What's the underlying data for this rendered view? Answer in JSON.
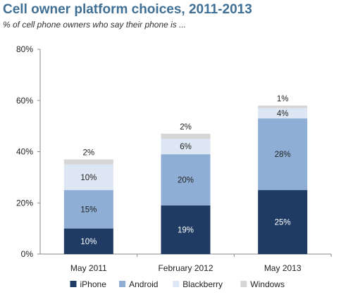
{
  "chart_data": {
    "type": "bar",
    "stacked": true,
    "title": "Cell owner platform choices, 2011-2013",
    "subtitle": "% of cell phone owners who say their phone is ...",
    "categories": [
      "May 2011",
      "February 2012",
      "May 2013"
    ],
    "series": [
      {
        "name": "iPhone",
        "values": [
          10,
          19,
          25
        ],
        "labels": [
          "10%",
          "19%",
          "25%"
        ],
        "color": "#1f3b63"
      },
      {
        "name": "Android",
        "values": [
          15,
          20,
          28
        ],
        "labels": [
          "15%",
          "20%",
          "28%"
        ],
        "color": "#8eaed6"
      },
      {
        "name": "Blackberry",
        "values": [
          10,
          6,
          4
        ],
        "labels": [
          "10%",
          "6%",
          "4%"
        ],
        "color": "#dde7f3"
      },
      {
        "name": "Windows",
        "values": [
          2,
          2,
          1
        ],
        "labels": [
          "2%",
          "2%",
          "1%"
        ],
        "color": "#d6d6d6"
      }
    ],
    "ylim": [
      0,
      80
    ],
    "yticks": [
      0,
      20,
      40,
      60,
      80
    ],
    "ytick_labels": [
      "0%",
      "20%",
      "40%",
      "60%",
      "80%"
    ],
    "xlabel": "",
    "ylabel": "",
    "grid": false,
    "legend": "bottom"
  }
}
